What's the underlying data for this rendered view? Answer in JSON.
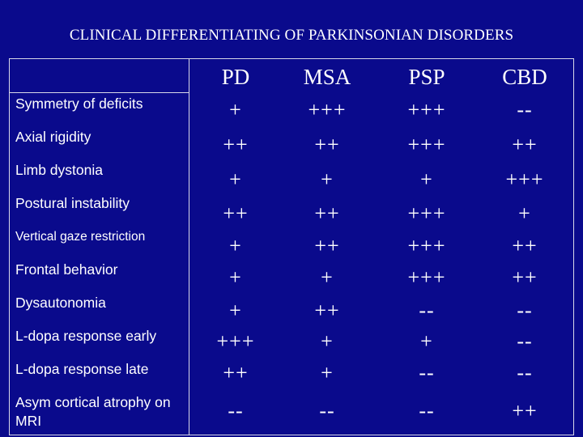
{
  "slide": {
    "title": "CLINICAL DIFFERENTIATING OF PARKINSONIAN DISORDERS"
  },
  "table": {
    "columns": [
      "PD",
      "MSA",
      "PSP",
      "CBD"
    ],
    "rows": [
      {
        "label": "Symmetry of deficits",
        "values": [
          "+",
          "+++",
          "+++",
          "--"
        ]
      },
      {
        "label": "Axial rigidity",
        "values": [
          "++",
          "++",
          "+++",
          "++"
        ]
      },
      {
        "label": "Limb dystonia",
        "values": [
          "+",
          "+",
          "+",
          "+++"
        ]
      },
      {
        "label": "Postural instability",
        "values": [
          "++",
          "++",
          "+++",
          "+"
        ]
      },
      {
        "label": "Vertical gaze restriction",
        "values": [
          "+",
          "++",
          "+++",
          "++"
        ]
      },
      {
        "label": "Frontal behavior",
        "values": [
          "+",
          "+",
          "+++",
          "++"
        ]
      },
      {
        "label": "Dysautonomia",
        "values": [
          "+",
          "++",
          "--",
          "--"
        ]
      },
      {
        "label": "L-dopa response early",
        "values": [
          "+++",
          "+",
          "+",
          "--"
        ]
      },
      {
        "label": "L-dopa response late",
        "values": [
          "++",
          "+",
          "--",
          "--"
        ]
      },
      {
        "label": "Asym cortical atrophy on MRI",
        "values": [
          "--",
          "--",
          "--",
          "++"
        ]
      }
    ]
  }
}
